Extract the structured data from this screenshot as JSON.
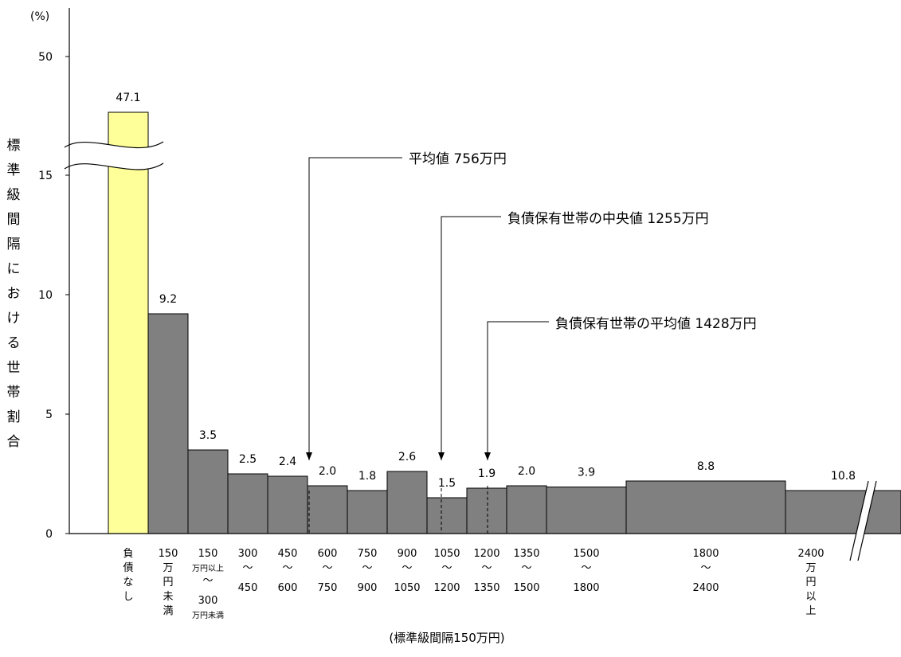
{
  "chart_data": {
    "type": "bar",
    "ylabel": "標準級間隔における世帯割合",
    "yunit": "(%)",
    "xlabel": "(標準級間隔150万円)",
    "y_ticks": [
      0,
      5,
      10,
      15,
      50
    ],
    "y_axis_break": [
      15,
      47.1
    ],
    "grid": false,
    "categories": [
      {
        "label": [
          "負",
          "債",
          "な",
          "し"
        ],
        "value": 47.1,
        "label_text": "47.1",
        "color": "#ffff99",
        "broken": true
      },
      {
        "label": [
          "150",
          "万",
          "円",
          "未",
          "満"
        ],
        "value": 9.2,
        "label_text": "9.2",
        "color": "#808080"
      },
      {
        "label": [
          "150",
          "万円以上",
          "〜",
          "300",
          "万円未満"
        ],
        "value": 3.5,
        "label_text": "3.5",
        "color": "#808080"
      },
      {
        "label": [
          "300",
          "〜",
          "450"
        ],
        "value": 2.5,
        "label_text": "2.5",
        "color": "#808080"
      },
      {
        "label": [
          "450",
          "〜",
          "600"
        ],
        "value": 2.4,
        "label_text": "2.4",
        "color": "#808080"
      },
      {
        "label": [
          "600",
          "〜",
          "750"
        ],
        "value": 2.0,
        "label_text": "2.0",
        "color": "#808080"
      },
      {
        "label": [
          "750",
          "〜",
          "900"
        ],
        "value": 1.8,
        "label_text": "1.8",
        "color": "#808080"
      },
      {
        "label": [
          "900",
          "〜",
          "1050"
        ],
        "value": 2.6,
        "label_text": "2.6",
        "color": "#808080"
      },
      {
        "label": [
          "1050",
          "〜",
          "1200"
        ],
        "value": 1.5,
        "label_text": "1.5",
        "color": "#808080"
      },
      {
        "label": [
          "1200",
          "〜",
          "1350"
        ],
        "value": 1.9,
        "label_text": "1.9",
        "color": "#808080"
      },
      {
        "label": [
          "1350",
          "〜",
          "1500"
        ],
        "value": 2.0,
        "label_text": "2.0",
        "color": "#808080"
      },
      {
        "label": [
          "1500",
          "〜",
          "1800"
        ],
        "value": 1.95,
        "label_text": "3.9",
        "color": "#808080"
      },
      {
        "label": [
          "1800",
          "〜",
          "2400"
        ],
        "value": 2.2,
        "label_text": "8.8",
        "color": "#808080"
      },
      {
        "label": [
          "2400",
          "万",
          "円",
          "以",
          "上"
        ],
        "value": 1.8,
        "label_text": "10.8",
        "color": "#808080",
        "broken_x": true
      }
    ],
    "annotations": [
      {
        "text": "平均値 756万円",
        "value": 756
      },
      {
        "text": "負債保有世帯の中央値 1255万円",
        "value": 1255
      },
      {
        "text": "負債保有世帯の平均値 1428万円",
        "value": 1428
      }
    ]
  }
}
